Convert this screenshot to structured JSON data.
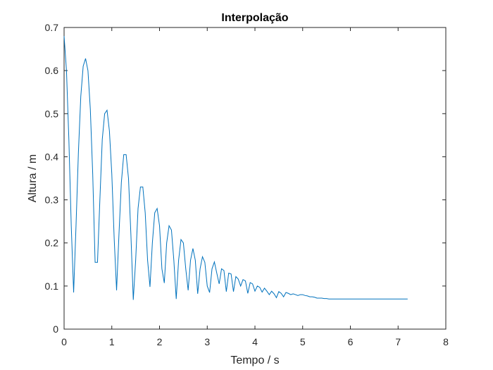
{
  "chart_data": {
    "type": "line",
    "title": "Interpolação",
    "xlabel": "Tempo / s",
    "ylabel": "Altura / m",
    "xlim": [
      0,
      8
    ],
    "ylim": [
      0,
      0.7
    ],
    "xticks": [
      0,
      1,
      2,
      3,
      4,
      5,
      6,
      7,
      8
    ],
    "xtick_labels": [
      "0",
      "1",
      "2",
      "3",
      "4",
      "5",
      "6",
      "7",
      "8"
    ],
    "yticks": [
      0,
      0.1,
      0.2,
      0.3,
      0.4,
      0.5,
      0.6,
      0.7
    ],
    "ytick_labels": [
      "0",
      "0.1",
      "0.2",
      "0.3",
      "0.4",
      "0.5",
      "0.6",
      "0.7"
    ],
    "grid": false,
    "line_color": "#0072bd",
    "series": [
      {
        "x": [
          0,
          0.05,
          0.1,
          0.15,
          0.2,
          0.25,
          0.3,
          0.35,
          0.4,
          0.45,
          0.5,
          0.55,
          0.6,
          0.65,
          0.7,
          0.75,
          0.8,
          0.85,
          0.9,
          0.95,
          1.0,
          1.05,
          1.1,
          1.15,
          1.2,
          1.25,
          1.3,
          1.35,
          1.4,
          1.45,
          1.5,
          1.55,
          1.6,
          1.65,
          1.7,
          1.75,
          1.8,
          1.85,
          1.9,
          1.95,
          2.0,
          2.05,
          2.1,
          2.15,
          2.2,
          2.25,
          2.3,
          2.35,
          2.4,
          2.45,
          2.5,
          2.55,
          2.6,
          2.65,
          2.7,
          2.75,
          2.8,
          2.85,
          2.9,
          2.95,
          3.0,
          3.05,
          3.1,
          3.15,
          3.2,
          3.25,
          3.3,
          3.35,
          3.4,
          3.45,
          3.5,
          3.55,
          3.6,
          3.65,
          3.7,
          3.75,
          3.8,
          3.85,
          3.9,
          3.95,
          4.0,
          4.05,
          4.1,
          4.15,
          4.2,
          4.25,
          4.3,
          4.35,
          4.4,
          4.45,
          4.5,
          4.55,
          4.6,
          4.65,
          4.7,
          4.75,
          4.8,
          4.85,
          4.9,
          4.95,
          5.0,
          5.05,
          5.1,
          5.15,
          5.2,
          5.25,
          5.3,
          5.35,
          5.4,
          5.45,
          5.5,
          5.55,
          5.6,
          5.65,
          5.7,
          5.75,
          5.8,
          5.85,
          5.9,
          5.95,
          6.0,
          6.05,
          6.1,
          6.15,
          6.2,
          6.25,
          6.3,
          6.35,
          6.4,
          6.45,
          6.5,
          6.55,
          6.6,
          6.65,
          6.7,
          6.75,
          6.8,
          6.85,
          6.9,
          6.95,
          7.0,
          7.05,
          7.1,
          7.15,
          7.2
        ],
        "y": [
          0.68,
          0.6,
          0.44,
          0.24,
          0.085,
          0.24,
          0.41,
          0.54,
          0.61,
          0.628,
          0.6,
          0.51,
          0.36,
          0.155,
          0.155,
          0.3,
          0.44,
          0.5,
          0.508,
          0.46,
          0.36,
          0.21,
          0.09,
          0.22,
          0.34,
          0.405,
          0.405,
          0.35,
          0.22,
          0.068,
          0.16,
          0.28,
          0.33,
          0.33,
          0.27,
          0.16,
          0.098,
          0.2,
          0.27,
          0.28,
          0.24,
          0.14,
          0.107,
          0.2,
          0.24,
          0.23,
          0.16,
          0.07,
          0.16,
          0.208,
          0.2,
          0.14,
          0.09,
          0.16,
          0.187,
          0.16,
          0.082,
          0.14,
          0.168,
          0.155,
          0.1,
          0.085,
          0.14,
          0.156,
          0.13,
          0.105,
          0.14,
          0.136,
          0.087,
          0.13,
          0.128,
          0.087,
          0.122,
          0.116,
          0.1,
          0.115,
          0.112,
          0.083,
          0.108,
          0.105,
          0.088,
          0.1,
          0.097,
          0.086,
          0.095,
          0.088,
          0.08,
          0.088,
          0.082,
          0.073,
          0.087,
          0.083,
          0.075,
          0.085,
          0.083,
          0.08,
          0.082,
          0.08,
          0.078,
          0.08,
          0.08,
          0.078,
          0.077,
          0.075,
          0.075,
          0.074,
          0.072,
          0.072,
          0.072,
          0.071,
          0.071,
          0.07,
          0.07,
          0.07,
          0.07,
          0.07,
          0.07,
          0.07,
          0.07,
          0.07,
          0.07,
          0.07,
          0.07,
          0.07,
          0.07,
          0.07,
          0.07,
          0.07,
          0.07,
          0.07,
          0.07,
          0.07,
          0.07,
          0.07,
          0.07,
          0.07,
          0.07,
          0.07,
          0.07,
          0.07,
          0.07,
          0.07,
          0.07,
          0.07,
          0.07
        ]
      }
    ]
  }
}
